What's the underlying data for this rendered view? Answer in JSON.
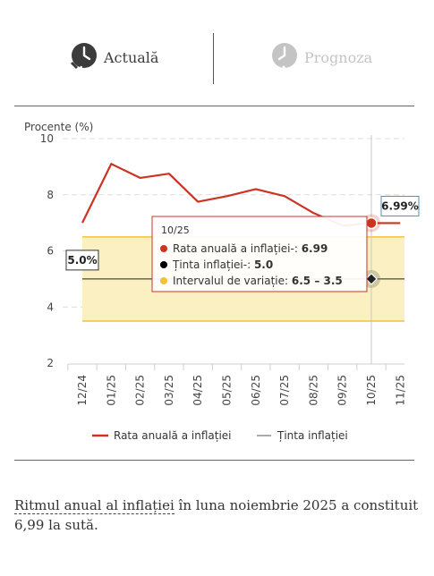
{
  "tabs": [
    {
      "label": "Actuală",
      "icon": "clock-back-icon",
      "active": true
    },
    {
      "label": "Prognoza",
      "icon": "clock-forward-icon",
      "active": false
    }
  ],
  "chart_data": {
    "type": "line",
    "ylabel": "Procente (%)",
    "ylim": [
      2,
      10
    ],
    "yticks": [
      2,
      4,
      6,
      8,
      10
    ],
    "grid": true,
    "categories": [
      "12/24",
      "01/25",
      "02/25",
      "03/25",
      "04/25",
      "05/25",
      "06/25",
      "07/25",
      "08/25",
      "09/25",
      "10/25",
      "11/25"
    ],
    "series": [
      {
        "name": "Rata anuală a inflației",
        "color": "#cc3322",
        "values": [
          7.0,
          9.1,
          8.6,
          8.75,
          7.75,
          7.95,
          8.2,
          7.95,
          7.35,
          6.9,
          6.99,
          6.99
        ]
      }
    ],
    "target": {
      "name": "Ținta inflației",
      "value": 5.0,
      "label": "5.0%",
      "color": "#000000"
    },
    "band": {
      "name": "Intervalul de variație",
      "low": 3.5,
      "high": 6.5,
      "color": "#f2c23a"
    },
    "last_value_label": "6.99%",
    "legend_position": "bottom",
    "legend": [
      "Rata anuală a inflației",
      "Ținta inflației"
    ],
    "tooltip": {
      "period": "10/25",
      "rows": [
        {
          "label": "Rata anuală a inflației-:",
          "value": "6.99",
          "color": "#cc3322"
        },
        {
          "label": "Ținta inflației-:",
          "value": "5.0",
          "color": "#000000"
        },
        {
          "label": "Intervalul de variație:",
          "value": "6.5 – 3.5",
          "color": "#f2c23a"
        }
      ]
    }
  },
  "footnote": {
    "term": "Ritmul anual al inflației",
    "text": " în luna noiembrie 2025 a constituit 6,99 la sută."
  }
}
